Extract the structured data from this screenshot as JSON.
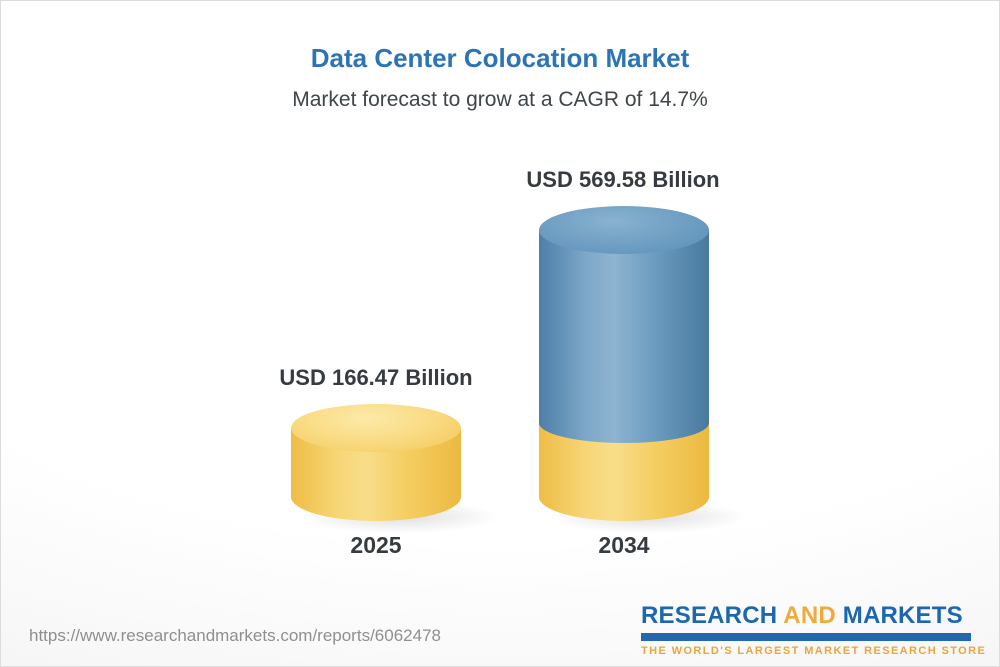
{
  "header": {
    "title": "Data Center Colocation Market",
    "subtitle": "Market forecast to grow at a CAGR of 14.7%"
  },
  "chart_data": {
    "type": "bar",
    "title": "Data Center Colocation Market",
    "subtitle": "Market forecast to grow at a CAGR of 14.7%",
    "cagr_percent": 14.7,
    "unit": "USD Billion",
    "categories": [
      "2025",
      "2034"
    ],
    "values": [
      166.47,
      569.58
    ],
    "bars": [
      {
        "category": "2025",
        "value": 166.47,
        "label": "USD 166.47 Billion",
        "color": "#F5CD60"
      },
      {
        "category": "2034",
        "value": 569.58,
        "label": "USD 569.58 Billion",
        "color_top": "#5C8FB6",
        "color_base": "#F5CD60"
      }
    ],
    "legend": "none",
    "axes": "none",
    "style": "3d-cylinder"
  },
  "footer": {
    "source_url": "https://www.researchandmarkets.com/reports/6062478",
    "logo": {
      "word1": "RESEARCH",
      "word2": "AND",
      "word3": "MARKETS",
      "tagline": "THE WORLD'S LARGEST MARKET RESEARCH STORE",
      "brand_blue": "#1C67B0",
      "brand_gold": "#F0AA3C"
    }
  }
}
